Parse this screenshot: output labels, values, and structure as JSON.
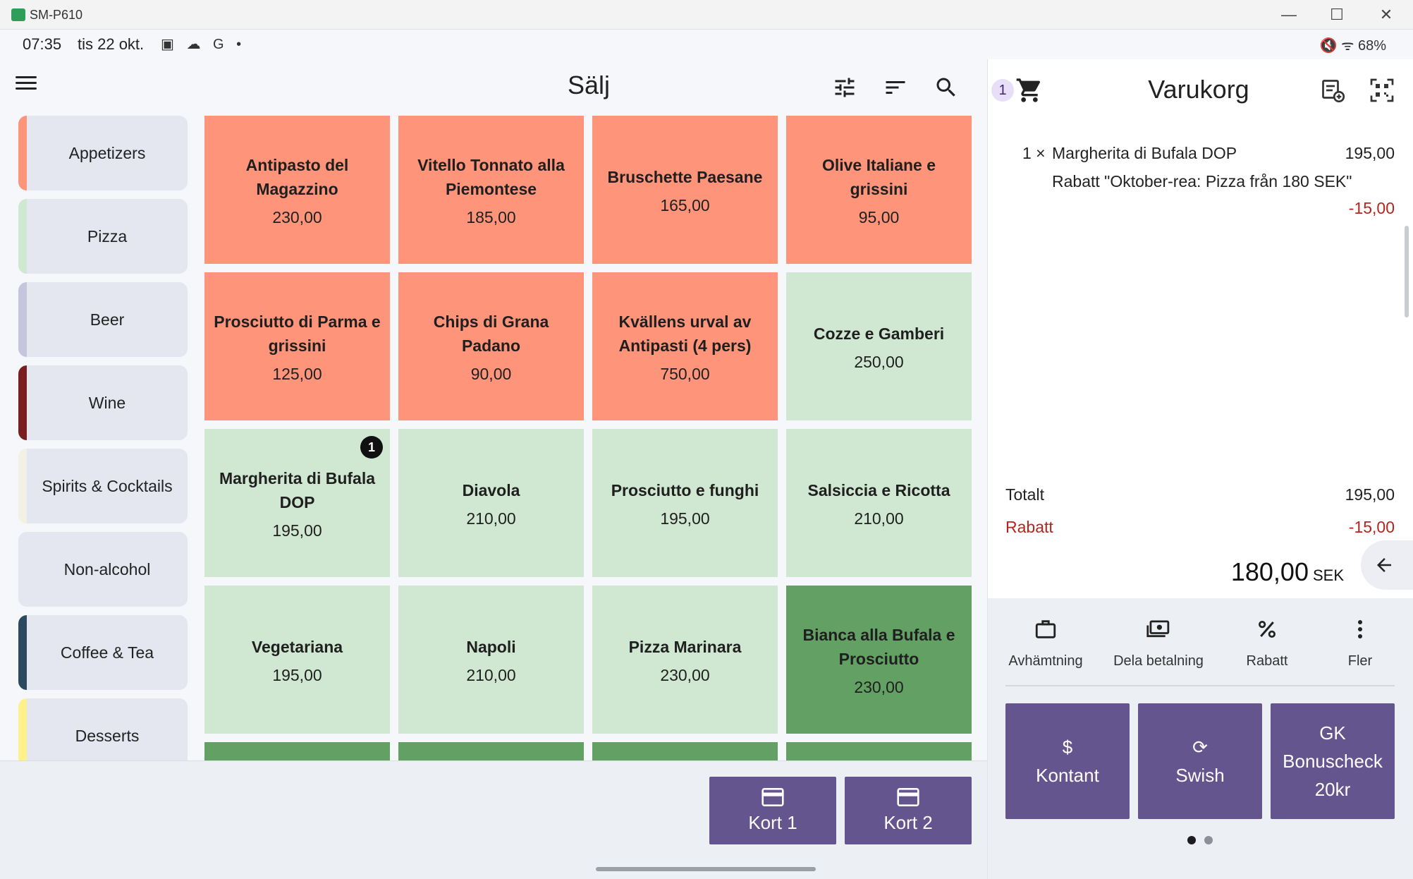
{
  "window": {
    "title": "SM-P610",
    "minimize": "—",
    "maximize": "☐",
    "close": "✕"
  },
  "status_bar": {
    "time": "07:35",
    "date": "tis 22 okt.",
    "icons": "▣ ☁ G •",
    "right_icons": "🔇 ᯤ",
    "battery": "68%"
  },
  "header": {
    "title": "Sälj",
    "icons": [
      "filter-icon",
      "sort-icon",
      "search-icon"
    ]
  },
  "categories": [
    {
      "label": "Appetizers",
      "color": "#fe957a"
    },
    {
      "label": "Pizza",
      "color": "#cfe8d0"
    },
    {
      "label": "Beer",
      "color": "#c5c5dc"
    },
    {
      "label": "Wine",
      "color": "#7a1f1f"
    },
    {
      "label": "Spirits & Cocktails",
      "color": "#f3f1e4"
    },
    {
      "label": "Non-alcohol",
      "color": "#e4e7ef"
    },
    {
      "label": "Coffee & Tea",
      "color": "#2c4a5f"
    },
    {
      "label": "Desserts",
      "color": "#fef08a"
    }
  ],
  "products": [
    {
      "name": "Antipasto del Magazzino",
      "price": "230,00",
      "color": "orange"
    },
    {
      "name": "Vitello Tonnato alla Piemontese",
      "price": "185,00",
      "color": "orange"
    },
    {
      "name": "Bruschette Paesane",
      "price": "165,00",
      "color": "orange"
    },
    {
      "name": "Olive Italiane e grissini",
      "price": "95,00",
      "color": "orange"
    },
    {
      "name": "Prosciutto di Parma e grissini",
      "price": "125,00",
      "color": "orange"
    },
    {
      "name": "Chips di Grana Padano",
      "price": "90,00",
      "color": "orange"
    },
    {
      "name": "Kvällens urval av Antipasti (4 pers)",
      "price": "750,00",
      "color": "orange"
    },
    {
      "name": "Cozze e Gamberi",
      "price": "250,00",
      "color": "lightgreen"
    },
    {
      "name": "Margherita di Bufala DOP",
      "price": "195,00",
      "color": "lightgreen",
      "badge": "1"
    },
    {
      "name": "Diavola",
      "price": "210,00",
      "color": "lightgreen"
    },
    {
      "name": "Prosciutto e funghi",
      "price": "195,00",
      "color": "lightgreen"
    },
    {
      "name": "Salsiccia e Ricotta",
      "price": "210,00",
      "color": "lightgreen"
    },
    {
      "name": "Vegetariana",
      "price": "195,00",
      "color": "lightgreen"
    },
    {
      "name": "Napoli",
      "price": "210,00",
      "color": "lightgreen"
    },
    {
      "name": "Pizza Marinara",
      "price": "230,00",
      "color": "lightgreen"
    },
    {
      "name": "Bianca alla Bufala e Prosciutto",
      "price": "230,00",
      "color": "darkgreen"
    }
  ],
  "card_buttons": [
    {
      "label": "Kort 1"
    },
    {
      "label": "Kort 2"
    }
  ],
  "cart": {
    "badge": "1",
    "title": "Varukorg",
    "line": {
      "qty": "1 ×",
      "name": "Margherita di Bufala DOP",
      "price": "195,00",
      "discount_text": "Rabatt \"Oktober-rea: Pizza från 180 SEK\"",
      "discount_amount": "-15,00"
    },
    "total_label": "Totalt",
    "total_value": "195,00",
    "discount_label": "Rabatt",
    "discount_value": "-15,00",
    "grand_total": "180,00",
    "currency": "SEK"
  },
  "actions": [
    {
      "label": "Avhämtning",
      "icon": "briefcase-icon"
    },
    {
      "label": "Dela betalning",
      "icon": "split-payment-icon"
    },
    {
      "label": "Rabatt",
      "icon": "percent-icon"
    },
    {
      "label": "Fler",
      "icon": "more-vert-icon"
    }
  ],
  "payment_buttons": [
    {
      "label": "Kontant",
      "symbol": "$"
    },
    {
      "label": "Swish",
      "symbol": "⟳"
    },
    {
      "label": "GK Bonuscheck 20kr"
    }
  ]
}
